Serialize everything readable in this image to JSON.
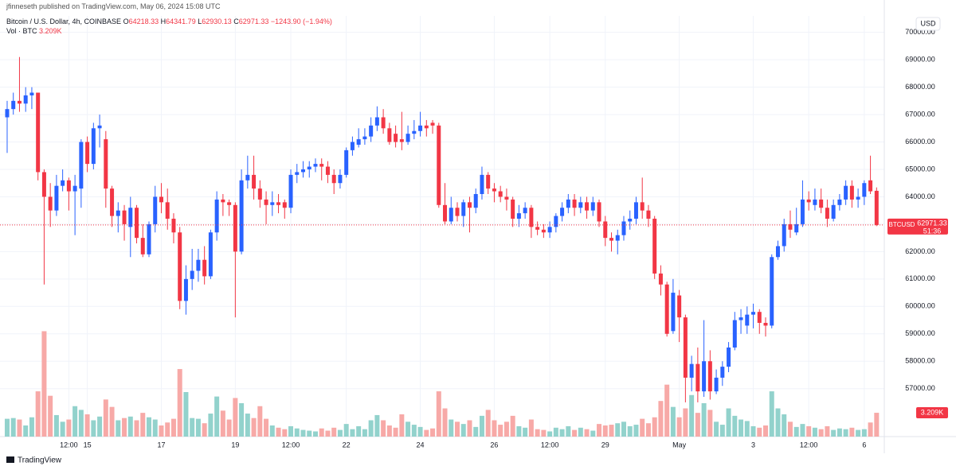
{
  "byline": "jfinneseth published on TradingView.com, May 06, 2024 15:08 UTC",
  "footer": {
    "logo": "TradingView"
  },
  "chart_data": {
    "type": "candlestick",
    "title": "Bitcoin / U.S. Dollar, 4h, COINBASE",
    "ohlc_letters": [
      "O",
      "H",
      "L",
      "C"
    ],
    "change_label": "−1243.90 (−1.94%)",
    "currency": "USD",
    "symbol": "BTCUSD",
    "countdown": "51:36",
    "up_color": "#2962ff",
    "down_color": "#f23645",
    "volume_up_color": "#92d2cc",
    "volume_down_color": "#f7a9a7",
    "grid": true,
    "xlim": [
      -1.16,
      142.25
    ],
    "ylim": [
      55250,
      70600
    ],
    "xticks": [
      {
        "value": 10,
        "label": "12:00"
      },
      {
        "value": 13,
        "label": "15"
      },
      {
        "value": 25,
        "label": "17"
      },
      {
        "value": 37,
        "label": "19"
      },
      {
        "value": 46,
        "label": "12:00"
      },
      {
        "value": 55,
        "label": "22"
      },
      {
        "value": 67,
        "label": "24"
      },
      {
        "value": 79,
        "label": "26"
      },
      {
        "value": 88,
        "label": "12:00"
      },
      {
        "value": 97,
        "label": "29"
      },
      {
        "value": 109,
        "label": "May"
      },
      {
        "value": 121,
        "label": "3"
      },
      {
        "value": 130,
        "label": "12:00"
      },
      {
        "value": 139,
        "label": "6"
      }
    ],
    "yticks": [
      {
        "value": 57000,
        "label": "57000.00"
      },
      {
        "value": 58000,
        "label": "58000.00"
      },
      {
        "value": 59000,
        "label": "59000.00"
      },
      {
        "value": 60000,
        "label": "60000.00"
      },
      {
        "value": 61000,
        "label": "61000.00"
      },
      {
        "value": 62000,
        "label": "62000.00"
      },
      {
        "value": 63000,
        "label": "63000.00"
      },
      {
        "value": 64000,
        "label": "64000.00"
      },
      {
        "value": 65000,
        "label": "65000.00"
      },
      {
        "value": 66000,
        "label": "66000.00"
      },
      {
        "value": 67000,
        "label": "67000.00"
      },
      {
        "value": 68000,
        "label": "68000.00"
      },
      {
        "value": 69000,
        "label": "69000.00"
      },
      {
        "value": 70000,
        "label": "70000.00"
      }
    ],
    "candles": {
      "open": [
        66900,
        67200,
        67500,
        67400,
        67700,
        67800,
        64900,
        64000,
        63500,
        64400,
        64600,
        64200,
        64300,
        66000,
        65200,
        66500,
        66100,
        64300,
        63300,
        63500,
        62900,
        63600,
        62500,
        61900,
        63000,
        64000,
        63800,
        63200,
        62700,
        60200,
        61000,
        61300,
        61700,
        61100,
        62700,
        63900,
        63800,
        63700,
        62000,
        64600,
        64800,
        64300,
        63900,
        63700,
        63800,
        63800,
        63600,
        64800,
        64900,
        65000,
        65100,
        65200,
        65100,
        64800,
        64500,
        64800,
        65700,
        65900,
        66100,
        66200,
        66600,
        66900,
        66500,
        66300,
        66100,
        66000,
        66300,
        66400,
        66600,
        66700,
        66600,
        63700,
        63100,
        63600,
        63300,
        63800,
        63600,
        64100,
        64800,
        64300,
        64200,
        64000,
        63900,
        63200,
        63400,
        63600,
        62900,
        62800,
        62700,
        62900,
        63300,
        63600,
        63900,
        63600,
        63800,
        63500,
        63800,
        63100,
        62500,
        62400,
        62600,
        63100,
        63200,
        63800,
        63500,
        63200,
        61200,
        60800,
        59100,
        60400,
        59600,
        57400,
        57900,
        56900,
        58000,
        56900,
        57400,
        57800,
        58500,
        59500,
        59300,
        59700,
        59800,
        59400,
        59300,
        61800,
        62200,
        63000,
        62700,
        63000,
        63900,
        63700,
        63900,
        63600,
        63200,
        63700,
        63900,
        64400,
        63900,
        64000,
        64600,
        64218.33
      ],
      "high": [
        67500,
        67800,
        69100,
        68000,
        68000,
        67800,
        65000,
        64500,
        64800,
        65000,
        64700,
        64800,
        66100,
        66200,
        66700,
        67000,
        66400,
        64400,
        63800,
        63700,
        64000,
        63700,
        63000,
        63100,
        64400,
        64500,
        64300,
        63400,
        62900,
        61500,
        62100,
        62100,
        62200,
        62800,
        64200,
        64100,
        63900,
        63800,
        65000,
        65500,
        65500,
        64600,
        64200,
        64200,
        64100,
        63900,
        65000,
        65200,
        65300,
        65300,
        65400,
        65400,
        65300,
        65000,
        65000,
        65800,
        66200,
        66500,
        66500,
        66900,
        67300,
        67200,
        66700,
        66600,
        67100,
        66600,
        66800,
        67100,
        66800,
        66800,
        66700,
        64500,
        64000,
        63800,
        63900,
        64000,
        64300,
        65100,
        64900,
        64500,
        64400,
        64300,
        64000,
        63700,
        63800,
        63700,
        63100,
        63000,
        63100,
        63400,
        63800,
        64100,
        64100,
        64000,
        64000,
        64000,
        63900,
        63300,
        62700,
        62800,
        63300,
        63500,
        64000,
        64700,
        63700,
        63300,
        61500,
        60900,
        61000,
        60600,
        59700,
        58200,
        58500,
        59500,
        58400,
        57700,
        58000,
        58700,
        59800,
        59900,
        60000,
        60100,
        59900,
        59600,
        61900,
        62400,
        63200,
        63500,
        63600,
        64600,
        64200,
        64300,
        64300,
        63900,
        63900,
        64100,
        64600,
        64600,
        64300,
        64600,
        65500,
        64341.79
      ],
      "low": [
        65600,
        67000,
        67100,
        67100,
        67200,
        64600,
        60800,
        62900,
        63300,
        64200,
        63500,
        62600,
        63600,
        64900,
        65000,
        65800,
        63600,
        62900,
        62700,
        62400,
        61800,
        62300,
        61800,
        61800,
        62700,
        63400,
        62800,
        62300,
        59900,
        59700,
        60600,
        60900,
        60800,
        61000,
        62400,
        63300,
        63300,
        59600,
        61900,
        64300,
        63900,
        63600,
        63000,
        63300,
        63400,
        63200,
        63400,
        64500,
        64700,
        64700,
        64900,
        64600,
        64500,
        64100,
        64300,
        64700,
        65500,
        65800,
        65900,
        66000,
        66400,
        66300,
        65900,
        65800,
        65700,
        65900,
        66100,
        66200,
        66200,
        66300,
        63600,
        63000,
        63000,
        63100,
        62900,
        62700,
        63400,
        63900,
        64100,
        63800,
        63800,
        63500,
        62900,
        62900,
        63200,
        62500,
        62600,
        62500,
        62500,
        62700,
        63100,
        63400,
        63300,
        63400,
        63200,
        63300,
        62900,
        62200,
        62000,
        61900,
        62400,
        62800,
        63000,
        63200,
        62900,
        61000,
        60400,
        58900,
        59000,
        58700,
        56500,
        56900,
        56500,
        56700,
        56600,
        56800,
        57100,
        57600,
        58400,
        59000,
        59000,
        59200,
        59000,
        58900,
        59200,
        61700,
        62000,
        62500,
        62600,
        62900,
        63500,
        63500,
        63400,
        62900,
        63100,
        63500,
        63700,
        63600,
        63600,
        63700,
        64100,
        62930.13
      ],
      "close": [
        67200,
        67500,
        67400,
        67700,
        67800,
        64900,
        64000,
        63500,
        64400,
        64600,
        64200,
        64400,
        66000,
        65200,
        66500,
        66600,
        64300,
        63300,
        63500,
        63000,
        63600,
        62500,
        61900,
        63000,
        64000,
        63800,
        63200,
        62700,
        60200,
        61000,
        61300,
        61700,
        61100,
        62700,
        63900,
        63800,
        63700,
        62000,
        64600,
        64800,
        64300,
        63900,
        63700,
        63800,
        63700,
        63600,
        64800,
        64900,
        65000,
        65100,
        65200,
        65100,
        64800,
        64500,
        64800,
        65700,
        66000,
        66100,
        66200,
        66600,
        66900,
        66500,
        66000,
        66000,
        66000,
        66300,
        66400,
        66600,
        66500,
        66600,
        63700,
        63100,
        63600,
        63300,
        63800,
        63600,
        64100,
        64800,
        64300,
        64200,
        64000,
        63900,
        63200,
        63400,
        63600,
        62900,
        62800,
        62700,
        62900,
        63300,
        63600,
        63900,
        63600,
        63800,
        63500,
        63800,
        63100,
        62500,
        62400,
        62600,
        63100,
        63200,
        63800,
        63500,
        63200,
        61200,
        60800,
        59000,
        60500,
        59600,
        57400,
        57900,
        56900,
        58000,
        56900,
        57400,
        57800,
        58500,
        59500,
        59600,
        59700,
        59800,
        59400,
        59300,
        61800,
        62200,
        63000,
        62800,
        63000,
        63900,
        63800,
        63900,
        63600,
        63200,
        63700,
        63900,
        64400,
        63900,
        64000,
        64500,
        64200,
        62971.33
      ]
    },
    "volume": {
      "name": "Vol · BTC",
      "ylim": [
        0,
        15000
      ],
      "values": [
        2400,
        2500,
        2300,
        1500,
        2600,
        6100,
        14200,
        5500,
        2900,
        2000,
        2300,
        4100,
        3600,
        3000,
        2200,
        2700,
        5000,
        4000,
        2200,
        2500,
        2700,
        2200,
        3200,
        2600,
        2300,
        1500,
        1900,
        2400,
        9100,
        6000,
        2500,
        2400,
        1800,
        3100,
        5400,
        3500,
        2300,
        5200,
        4500,
        3100,
        2500,
        4100,
        2400,
        1500,
        1200,
        1000,
        1400,
        1100,
        900,
        800,
        700,
        1100,
        800,
        1200,
        900,
        1700,
        1000,
        1400,
        1000,
        2200,
        2900,
        2200,
        1500,
        1200,
        3000,
        2000,
        1600,
        1300,
        900,
        1100,
        6100,
        3800,
        2300,
        2000,
        1700,
        2200,
        1300,
        2800,
        3600,
        2200,
        1600,
        2000,
        2800,
        1400,
        1200,
        2300,
        1000,
        900,
        700,
        1200,
        1000,
        1400,
        900,
        1200,
        1000,
        800,
        1700,
        1500,
        1600,
        1800,
        2000,
        1400,
        1600,
        2400,
        1800,
        2600,
        4800,
        7000,
        4000,
        2600,
        3800,
        5600,
        3200,
        4500,
        3600,
        2000,
        1600,
        3800,
        2800,
        2300,
        2100,
        1400,
        1200,
        1500,
        6100,
        3800,
        3000,
        2000,
        1300,
        1700,
        1400,
        1200,
        1000,
        1400,
        900,
        1100,
        1000,
        1200,
        900,
        1000,
        1900,
        3209
      ],
      "value_labels": [
        null,
        null,
        null,
        null,
        null,
        null,
        null,
        null,
        null,
        null,
        null,
        null,
        null,
        null,
        null,
        null,
        null,
        null,
        null,
        null,
        null,
        null,
        null,
        null,
        null,
        null,
        null,
        null,
        null,
        null,
        null,
        null,
        null,
        null,
        null,
        null,
        null,
        null,
        null,
        null,
        null,
        null,
        null,
        null,
        null,
        null,
        null,
        null,
        null,
        null,
        null,
        null,
        null,
        null,
        null,
        null,
        null,
        null,
        null,
        null,
        null,
        null,
        null,
        null,
        null,
        null,
        null,
        null,
        null,
        null,
        null,
        null,
        null,
        null,
        null,
        null,
        null,
        null,
        null,
        null,
        null,
        null,
        null,
        null,
        null,
        null,
        null,
        null,
        null,
        null,
        null,
        null,
        null,
        null,
        null,
        null,
        null,
        null,
        null,
        null,
        null,
        null,
        null,
        null,
        null,
        null,
        null,
        null,
        null,
        null,
        null,
        null,
        null,
        null,
        null,
        null,
        null,
        null,
        null,
        null,
        null,
        null,
        null,
        null,
        null,
        null,
        null,
        null,
        null,
        null,
        null,
        null,
        null,
        null,
        null,
        null,
        null,
        null,
        null,
        null,
        null,
        "3.209K"
      ]
    }
  }
}
